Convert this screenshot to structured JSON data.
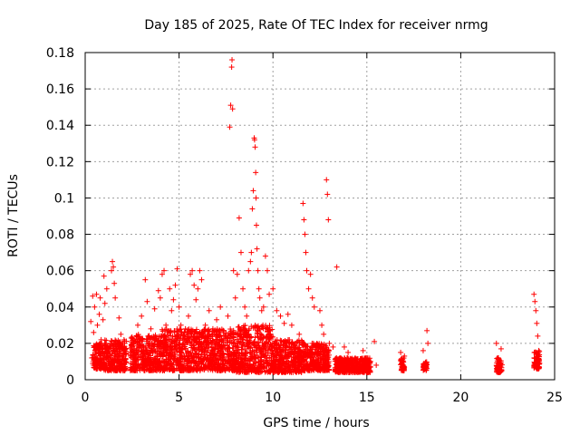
{
  "chart_data": {
    "type": "scatter",
    "title": "Day 185 of 2025, Rate Of TEC Index for receiver nrmg",
    "xlabel": "GPS time / hours",
    "ylabel": "ROTI / TECUs",
    "xlim": [
      0,
      25
    ],
    "ylim": [
      0,
      0.18
    ],
    "x_ticks": [
      0,
      5,
      10,
      15,
      20,
      25
    ],
    "x_tick_labels": [
      "0",
      "5",
      "10",
      "15",
      "20",
      "25"
    ],
    "y_ticks": [
      0,
      0.02,
      0.04,
      0.06,
      0.08,
      0.1,
      0.12,
      0.14,
      0.16,
      0.18
    ],
    "y_tick_labels": [
      "0",
      "0.02",
      "0.04",
      "0.06",
      "0.08",
      "0.1",
      "0.12",
      "0.14",
      "0.16",
      "0.18"
    ],
    "grid": true,
    "marker": "plus",
    "color": "#ff0000",
    "series": [
      {
        "name": "ROTI",
        "points": [
          [
            0.3,
            0.032
          ],
          [
            0.35,
            0.012
          ],
          [
            0.4,
            0.046
          ],
          [
            0.45,
            0.026
          ],
          [
            0.5,
            0.04
          ],
          [
            0.55,
            0.018
          ],
          [
            0.6,
            0.047
          ],
          [
            0.65,
            0.03
          ],
          [
            0.7,
            0.015
          ],
          [
            0.75,
            0.036
          ],
          [
            0.8,
            0.045
          ],
          [
            0.85,
            0.022
          ],
          [
            0.9,
            0.01
          ],
          [
            0.95,
            0.033
          ],
          [
            1.0,
            0.057
          ],
          [
            1.05,
            0.042
          ],
          [
            1.1,
            0.02
          ],
          [
            1.15,
            0.05
          ],
          [
            1.2,
            0.011
          ],
          [
            1.3,
            0.014
          ],
          [
            1.4,
            0.06
          ],
          [
            1.45,
            0.065
          ],
          [
            1.5,
            0.062
          ],
          [
            1.55,
            0.053
          ],
          [
            1.6,
            0.045
          ],
          [
            1.7,
            0.018
          ],
          [
            1.8,
            0.034
          ],
          [
            1.9,
            0.025
          ],
          [
            2.0,
            0.02
          ],
          [
            2.1,
            0.016
          ],
          [
            2.4,
            0.017
          ],
          [
            2.6,
            0.022
          ],
          [
            2.8,
            0.03
          ],
          [
            3.0,
            0.035
          ],
          [
            3.2,
            0.055
          ],
          [
            3.3,
            0.043
          ],
          [
            3.5,
            0.028
          ],
          [
            3.7,
            0.039
          ],
          [
            3.9,
            0.049
          ],
          [
            4.0,
            0.045
          ],
          [
            4.1,
            0.058
          ],
          [
            4.2,
            0.06
          ],
          [
            4.3,
            0.03
          ],
          [
            4.5,
            0.05
          ],
          [
            4.6,
            0.038
          ],
          [
            4.7,
            0.044
          ],
          [
            4.8,
            0.052
          ],
          [
            4.9,
            0.061
          ],
          [
            5.0,
            0.04
          ],
          [
            5.1,
            0.03
          ],
          [
            5.3,
            0.026
          ],
          [
            5.5,
            0.035
          ],
          [
            5.6,
            0.058
          ],
          [
            5.7,
            0.06
          ],
          [
            5.8,
            0.052
          ],
          [
            5.9,
            0.044
          ],
          [
            6.0,
            0.05
          ],
          [
            6.1,
            0.06
          ],
          [
            6.2,
            0.055
          ],
          [
            6.4,
            0.03
          ],
          [
            6.6,
            0.038
          ],
          [
            6.8,
            0.028
          ],
          [
            7.0,
            0.033
          ],
          [
            7.2,
            0.04
          ],
          [
            7.4,
            0.024
          ],
          [
            7.6,
            0.035
          ],
          [
            7.7,
            0.139
          ],
          [
            7.75,
            0.151
          ],
          [
            7.8,
            0.172
          ],
          [
            7.82,
            0.176
          ],
          [
            7.85,
            0.149
          ],
          [
            7.9,
            0.06
          ],
          [
            8.0,
            0.045
          ],
          [
            8.1,
            0.058
          ],
          [
            8.2,
            0.089
          ],
          [
            8.3,
            0.07
          ],
          [
            8.4,
            0.05
          ],
          [
            8.5,
            0.04
          ],
          [
            8.6,
            0.035
          ],
          [
            8.7,
            0.06
          ],
          [
            8.8,
            0.065
          ],
          [
            8.85,
            0.07
          ],
          [
            8.9,
            0.094
          ],
          [
            8.95,
            0.104
          ],
          [
            9.0,
            0.133
          ],
          [
            9.02,
            0.132
          ],
          [
            9.05,
            0.128
          ],
          [
            9.08,
            0.114
          ],
          [
            9.1,
            0.1
          ],
          [
            9.12,
            0.085
          ],
          [
            9.15,
            0.072
          ],
          [
            9.2,
            0.06
          ],
          [
            9.25,
            0.05
          ],
          [
            9.3,
            0.045
          ],
          [
            9.4,
            0.038
          ],
          [
            9.5,
            0.04
          ],
          [
            9.6,
            0.068
          ],
          [
            9.7,
            0.06
          ],
          [
            9.8,
            0.047
          ],
          [
            10.0,
            0.05
          ],
          [
            10.2,
            0.038
          ],
          [
            10.4,
            0.035
          ],
          [
            10.6,
            0.031
          ],
          [
            10.8,
            0.036
          ],
          [
            11.0,
            0.03
          ],
          [
            11.2,
            0.02
          ],
          [
            11.4,
            0.025
          ],
          [
            11.6,
            0.097
          ],
          [
            11.65,
            0.088
          ],
          [
            11.7,
            0.08
          ],
          [
            11.75,
            0.07
          ],
          [
            11.8,
            0.06
          ],
          [
            11.9,
            0.05
          ],
          [
            12.0,
            0.058
          ],
          [
            12.1,
            0.045
          ],
          [
            12.2,
            0.04
          ],
          [
            12.5,
            0.038
          ],
          [
            12.6,
            0.03
          ],
          [
            12.7,
            0.025
          ],
          [
            12.8,
            0.018
          ],
          [
            12.85,
            0.11
          ],
          [
            12.9,
            0.102
          ],
          [
            12.95,
            0.088
          ],
          [
            13.0,
            0.02
          ],
          [
            13.2,
            0.018
          ],
          [
            13.4,
            0.062
          ],
          [
            13.6,
            0.012
          ],
          [
            13.8,
            0.018
          ],
          [
            14.0,
            0.015
          ],
          [
            14.2,
            0.011
          ],
          [
            14.4,
            0.01
          ],
          [
            14.6,
            0.007
          ],
          [
            14.8,
            0.016
          ],
          [
            15.0,
            0.012
          ],
          [
            15.2,
            0.01
          ],
          [
            15.4,
            0.021
          ],
          [
            15.5,
            0.008
          ],
          [
            16.8,
            0.015
          ],
          [
            16.9,
            0.006
          ],
          [
            17.0,
            0.013
          ],
          [
            18.0,
            0.016
          ],
          [
            18.1,
            0.007
          ],
          [
            18.2,
            0.027
          ],
          [
            18.25,
            0.02
          ],
          [
            21.9,
            0.02
          ],
          [
            22.0,
            0.012
          ],
          [
            22.1,
            0.005
          ],
          [
            22.15,
            0.017
          ],
          [
            23.9,
            0.047
          ],
          [
            23.95,
            0.043
          ],
          [
            24.0,
            0.038
          ],
          [
            24.05,
            0.031
          ],
          [
            24.1,
            0.024
          ],
          [
            24.15,
            0.016
          ],
          [
            24.2,
            0.009
          ]
        ],
        "dense_band": [
          [
            0.4,
            1.0,
            0.006,
            0.02
          ],
          [
            1.0,
            2.2,
            0.005,
            0.022
          ],
          [
            2.4,
            4.0,
            0.005,
            0.025
          ],
          [
            4.0,
            6.0,
            0.005,
            0.028
          ],
          [
            6.0,
            8.0,
            0.005,
            0.028
          ],
          [
            8.0,
            10.0,
            0.004,
            0.03
          ],
          [
            10.0,
            11.6,
            0.004,
            0.022
          ],
          [
            11.6,
            13.0,
            0.005,
            0.02
          ],
          [
            13.3,
            15.2,
            0.004,
            0.012
          ],
          [
            16.8,
            17.0,
            0.005,
            0.012
          ],
          [
            18.0,
            18.2,
            0.005,
            0.01
          ],
          [
            21.9,
            22.2,
            0.004,
            0.012
          ],
          [
            23.9,
            24.2,
            0.006,
            0.016
          ]
        ]
      }
    ]
  }
}
